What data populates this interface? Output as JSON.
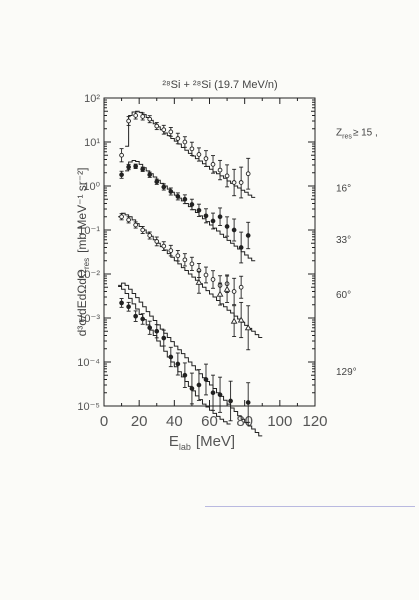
{
  "chart_data": {
    "type": "scatter",
    "title": "²⁸Si + ²⁸Si (19.7 MeV/n)",
    "xlabel_main": "E",
    "xlabel_sub": "lab",
    "xlabel_unit": "[MeV]",
    "ylabel": "d³σ/dEdΩdΩ",
    "ylabel_sub": "res",
    "ylabel_unit": "[mb MeV⁻¹ sr⁻²]",
    "xlim": [
      0,
      120
    ],
    "ylim_log10": [
      -5,
      2
    ],
    "x_ticks": [
      0,
      20,
      40,
      60,
      80,
      100,
      120
    ],
    "y_ticks": [
      {
        "exp": 2,
        "label": "10²"
      },
      {
        "exp": 1,
        "label": "10¹"
      },
      {
        "exp": 0,
        "label": "10⁰"
      },
      {
        "exp": -1,
        "label": "10⁻¹"
      },
      {
        "exp": -2,
        "label": "10⁻²"
      },
      {
        "exp": -3,
        "label": "10⁻³"
      },
      {
        "exp": -4,
        "label": "10⁻⁴"
      },
      {
        "exp": -5,
        "label": "10⁻⁵"
      }
    ],
    "series": [
      {
        "name": "Z_res ≥ 15 ,",
        "label": "Z",
        "label_sub": "res",
        "label_rest": "≥ 15 ,",
        "marker": "open-circle",
        "label_y_log": 1.15,
        "points": [
          [
            10,
            5
          ],
          [
            14,
            30
          ],
          [
            18,
            40
          ],
          [
            22,
            38
          ],
          [
            26,
            33
          ],
          [
            30,
            23
          ],
          [
            34,
            19
          ],
          [
            38,
            17
          ],
          [
            42,
            12
          ],
          [
            46,
            10
          ],
          [
            50,
            7
          ],
          [
            54,
            5.2
          ],
          [
            58,
            4.2
          ],
          [
            62,
            3.1
          ],
          [
            66,
            2.3
          ],
          [
            70,
            1.7
          ],
          [
            74,
            1.2
          ],
          [
            78,
            1.2
          ],
          [
            82,
            1.9
          ]
        ],
        "errors_log": [
          0.15,
          0.1,
          0.08,
          0.08,
          0.08,
          0.08,
          0.1,
          0.1,
          0.12,
          0.12,
          0.15,
          0.15,
          0.18,
          0.2,
          0.22,
          0.25,
          0.3,
          0.35,
          0.35
        ],
        "model_x": [
          12,
          14,
          16,
          18,
          20,
          22,
          24,
          26,
          28,
          30,
          32,
          34,
          36,
          38,
          40,
          42,
          44,
          46,
          48,
          50,
          52,
          54,
          56,
          58,
          60,
          62,
          64,
          66,
          68,
          70,
          72,
          74,
          76,
          78,
          80,
          82,
          84
        ],
        "model_y": [
          8,
          40,
          48,
          50,
          47,
          42,
          36,
          31,
          26,
          22,
          19,
          16,
          14,
          12,
          10.5,
          9,
          7.5,
          6.5,
          5.5,
          4.8,
          4.2,
          3.7,
          3.2,
          2.8,
          2.4,
          2.1,
          1.9,
          1.7,
          1.5,
          1.3,
          1.15,
          1.0,
          0.9,
          0.8,
          0.72,
          0.62,
          0.55
        ]
      },
      {
        "name": "16°",
        "label": "16°",
        "marker": "filled-circle",
        "label_y_log": -0.12,
        "points": [
          [
            10,
            1.8
          ],
          [
            14,
            2.7
          ],
          [
            18,
            2.8
          ],
          [
            22,
            2.4
          ],
          [
            26,
            1.8
          ],
          [
            30,
            1.25
          ],
          [
            34,
            0.95
          ],
          [
            38,
            0.75
          ],
          [
            42,
            0.58
          ],
          [
            46,
            0.5
          ],
          [
            50,
            0.38
          ],
          [
            54,
            0.28
          ],
          [
            58,
            0.21
          ],
          [
            62,
            0.16
          ],
          [
            66,
            0.2
          ],
          [
            70,
            0.12
          ],
          [
            74,
            0.1
          ],
          [
            78,
            0.04
          ],
          [
            82,
            0.075
          ]
        ],
        "errors_log": [
          0.08,
          0.06,
          0.05,
          0.05,
          0.06,
          0.06,
          0.07,
          0.08,
          0.08,
          0.1,
          0.12,
          0.14,
          0.16,
          0.18,
          0.2,
          0.22,
          0.25,
          0.35,
          0.3
        ],
        "model_x": [
          12,
          14,
          16,
          18,
          20,
          22,
          24,
          26,
          28,
          30,
          32,
          34,
          36,
          38,
          40,
          42,
          44,
          46,
          48,
          50,
          52,
          54,
          56,
          58,
          60,
          62,
          64,
          66,
          68,
          70,
          72,
          74,
          76,
          78,
          80,
          82,
          84
        ],
        "model_y": [
          2.2,
          3.5,
          3.8,
          3.6,
          3.1,
          2.6,
          2.2,
          1.9,
          1.6,
          1.35,
          1.15,
          1.0,
          0.85,
          0.72,
          0.62,
          0.53,
          0.46,
          0.4,
          0.34,
          0.29,
          0.25,
          0.21,
          0.18,
          0.155,
          0.13,
          0.11,
          0.095,
          0.08,
          0.068,
          0.058,
          0.05,
          0.043,
          0.037,
          0.032,
          0.027,
          0.023,
          0.02
        ]
      },
      {
        "name": "33°",
        "label": "33°",
        "marker": "open-circle",
        "label_y_log": -1.3,
        "points": [
          [
            10,
            0.2
          ],
          [
            14,
            0.17
          ],
          [
            18,
            0.13
          ],
          [
            22,
            0.1
          ],
          [
            26,
            0.075
          ],
          [
            30,
            0.055
          ],
          [
            34,
            0.043
          ],
          [
            38,
            0.034
          ],
          [
            42,
            0.026
          ],
          [
            46,
            0.021
          ],
          [
            50,
            0.017
          ],
          [
            54,
            0.012
          ],
          [
            58,
            0.0095
          ],
          [
            62,
            0.0075
          ],
          [
            66,
            0.0055
          ],
          [
            70,
            0.006
          ],
          [
            74,
            0.004
          ],
          [
            78,
            0.005
          ]
        ],
        "errors_log": [
          0.07,
          0.07,
          0.07,
          0.08,
          0.08,
          0.1,
          0.1,
          0.12,
          0.12,
          0.14,
          0.15,
          0.16,
          0.18,
          0.2,
          0.22,
          0.2,
          0.3,
          0.25
        ],
        "model_x": [
          8,
          10,
          12,
          14,
          16,
          18,
          20,
          22,
          24,
          26,
          28,
          30,
          32,
          34,
          36,
          38,
          40,
          42,
          44,
          46,
          48,
          50,
          52,
          54,
          56,
          58,
          60,
          62,
          64,
          66,
          68,
          70,
          72,
          74,
          76,
          78,
          80,
          82,
          84,
          86,
          88
        ],
        "model_y": [
          0.2,
          0.24,
          0.22,
          0.2,
          0.17,
          0.14,
          0.12,
          0.1,
          0.085,
          0.072,
          0.06,
          0.05,
          0.042,
          0.035,
          0.029,
          0.024,
          0.02,
          0.017,
          0.014,
          0.012,
          0.01,
          0.0085,
          0.0072,
          0.006,
          0.005,
          0.0042,
          0.0035,
          0.003,
          0.0025,
          0.0021,
          0.0018,
          0.0015,
          0.0013,
          0.0011,
          0.00095,
          0.0008,
          0.00068,
          0.00058,
          0.0005,
          0.00042,
          0.00036
        ]
      },
      {
        "name": "60°",
        "label": "60°",
        "marker": "open-triangle",
        "label_y_log": -2.55,
        "points": [
          [
            54,
            0.0065
          ],
          [
            66,
            0.0035
          ],
          [
            70,
            0.0045
          ],
          [
            74,
            0.00085
          ],
          [
            78,
            0.0009
          ],
          [
            82,
            0.0006
          ]
        ],
        "errors_log": [
          0.25,
          0.25,
          0.3,
          0.35,
          0.4,
          0.5
        ],
        "model_x": [
          8,
          10,
          12,
          14,
          16,
          18,
          20,
          22,
          24,
          26,
          28,
          30,
          32,
          34,
          36,
          38,
          40,
          42,
          44,
          46,
          48,
          50,
          52,
          54,
          56,
          58,
          60,
          62,
          64,
          66,
          68,
          70,
          72,
          74,
          76,
          78,
          80,
          82,
          84,
          86,
          88
        ],
        "model_y": [
          0.0055,
          0.0062,
          0.0055,
          0.0045,
          0.0036,
          0.0029,
          0.0023,
          0.0018,
          0.0014,
          0.0011,
          0.00088,
          0.0007,
          0.00056,
          0.00045,
          0.00036,
          0.00029,
          0.00023,
          0.00019,
          0.000155,
          0.000125,
          0.0001,
          8.2e-05,
          6.6e-05,
          5.4e-05,
          4.4e-05,
          3.6e-05,
          3e-05,
          2.5e-05,
          2e-05,
          1.65e-05,
          1.35e-05,
          1.1e-05,
          9e-06,
          7.5e-06,
          6e-06,
          5e-06,
          4.2e-06,
          3.5e-06,
          3e-06,
          2.5e-06,
          2.1e-06
        ]
      },
      {
        "name": "129°",
        "label": "129°",
        "marker": "filled-circle",
        "label_y_log": -4.3,
        "points": [
          [
            10,
            0.0022
          ],
          [
            14,
            0.0018
          ],
          [
            18,
            0.0011
          ],
          [
            22,
            0.00095
          ],
          [
            26,
            0.0006
          ],
          [
            30,
            0.0005
          ],
          [
            34,
            0.00035
          ],
          [
            38,
            0.00013
          ],
          [
            42,
            9e-05
          ],
          [
            46,
            5e-05
          ],
          [
            50,
            2.5e-05
          ],
          [
            54,
            3e-05
          ],
          [
            58,
            4e-05
          ],
          [
            62,
            2e-05
          ],
          [
            66,
            1.8e-05
          ],
          [
            72,
            1.3e-05
          ],
          [
            82,
            1.2e-05
          ]
        ],
        "errors_log": [
          0.1,
          0.1,
          0.12,
          0.12,
          0.15,
          0.15,
          0.18,
          0.22,
          0.25,
          0.28,
          0.35,
          0.35,
          0.35,
          0.4,
          0.4,
          0.45,
          0.45
        ],
        "model_x": [
          8,
          10,
          12,
          14,
          16,
          18,
          20,
          22,
          24,
          26,
          28,
          30,
          32,
          34,
          36,
          38,
          40,
          42,
          44,
          46,
          48,
          50,
          52,
          54,
          56,
          58,
          60,
          62,
          64,
          66,
          68,
          70
        ],
        "model_y": [
          0.0052,
          0.0045,
          0.0036,
          0.0028,
          0.0021,
          0.0016,
          0.0012,
          0.00092,
          0.0007,
          0.00053,
          0.0004,
          0.0003,
          0.00023,
          0.000175,
          0.00013,
          0.0001,
          7.8e-05,
          6e-05,
          4.6e-05,
          3.6e-05,
          2.8e-05,
          2.2e-05,
          1.7e-05,
          1.4e-05,
          1.1e-05,
          9.5e-06,
          8e-06,
          6.8e-06,
          5.8e-06,
          5e-06,
          4.4e-06,
          3.9e-06
        ]
      }
    ]
  }
}
